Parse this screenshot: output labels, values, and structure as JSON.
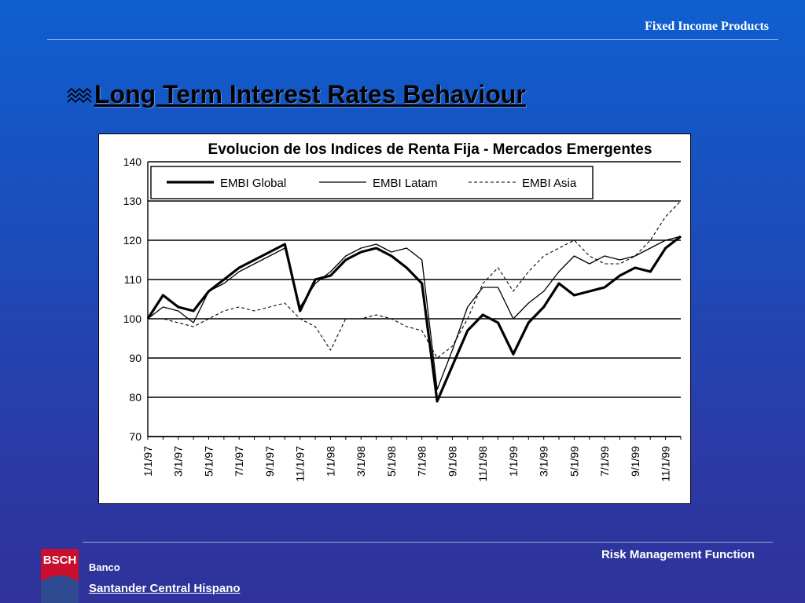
{
  "header": {
    "title": "Fixed Income Products"
  },
  "slide": {
    "title": "Long Term Interest Rates Behaviour",
    "bullet_icon": "wave-bullet-icon"
  },
  "footer": {
    "right_text": "Risk Management Function",
    "logo_text": "BSCH",
    "bank_line1": "Banco",
    "bank_line2": "Santander Central Hispano"
  },
  "colors": {
    "background_top": "#0f5fd0",
    "background_bottom": "#2f3299",
    "logo": "#c8102e",
    "logo_wave": "#2f4a90"
  },
  "chart_data": {
    "type": "line",
    "title": "Evolucion de los Indices de Renta Fija - Mercados Emergentes",
    "xlabel": "",
    "ylabel": "",
    "ylim": [
      70,
      140
    ],
    "yticks": [
      70,
      80,
      90,
      100,
      110,
      120,
      130,
      140
    ],
    "grid": "horizontal",
    "legend_position": "top",
    "x": [
      "1/1/97",
      "2/1/97",
      "3/1/97",
      "4/1/97",
      "5/1/97",
      "6/1/97",
      "7/1/97",
      "8/1/97",
      "9/1/97",
      "10/1/97",
      "11/1/97",
      "12/1/97",
      "1/1/98",
      "2/1/98",
      "3/1/98",
      "4/1/98",
      "5/1/98",
      "6/1/98",
      "7/1/98",
      "8/1/98",
      "9/1/98",
      "10/1/98",
      "11/1/98",
      "12/1/98",
      "1/1/99",
      "2/1/99",
      "3/1/99",
      "4/1/99",
      "5/1/99",
      "6/1/99",
      "7/1/99",
      "8/1/99",
      "9/1/99",
      "10/1/99",
      "11/1/99",
      "12/1/99"
    ],
    "x_tick_labels": [
      "1/1/97",
      "3/1/97",
      "5/1/97",
      "7/1/97",
      "9/1/97",
      "11/1/97",
      "1/1/98",
      "3/1/98",
      "5/1/98",
      "7/1/98",
      "9/1/98",
      "11/1/98",
      "1/1/99",
      "3/1/99",
      "5/1/99",
      "7/1/99",
      "9/1/99",
      "11/1/99"
    ],
    "series": [
      {
        "name": "EMBI Global",
        "style": "thick",
        "values": [
          100,
          106,
          103,
          102,
          107,
          110,
          113,
          115,
          117,
          119,
          102,
          110,
          111,
          115,
          117,
          118,
          116,
          113,
          109,
          79,
          88,
          97,
          101,
          99,
          91,
          99,
          103,
          109,
          106,
          107,
          108,
          111,
          113,
          112,
          118,
          121
        ]
      },
      {
        "name": "EMBI Latam",
        "style": "thin",
        "values": [
          100,
          103,
          102,
          99,
          107,
          109,
          112,
          114,
          116,
          118,
          103,
          109,
          112,
          116,
          118,
          119,
          117,
          118,
          115,
          82,
          92,
          103,
          108,
          108,
          100,
          104,
          107,
          112,
          116,
          114,
          116,
          115,
          116,
          118,
          120,
          121
        ]
      },
      {
        "name": "EMBI Asia",
        "style": "dashed",
        "values": [
          100,
          100,
          99,
          98,
          100,
          102,
          103,
          102,
          103,
          104,
          100,
          98,
          92,
          100,
          100,
          101,
          100,
          98,
          97,
          90,
          93,
          100,
          109,
          113,
          107,
          112,
          116,
          118,
          120,
          116,
          114,
          114,
          116,
          120,
          126,
          130
        ]
      }
    ]
  }
}
